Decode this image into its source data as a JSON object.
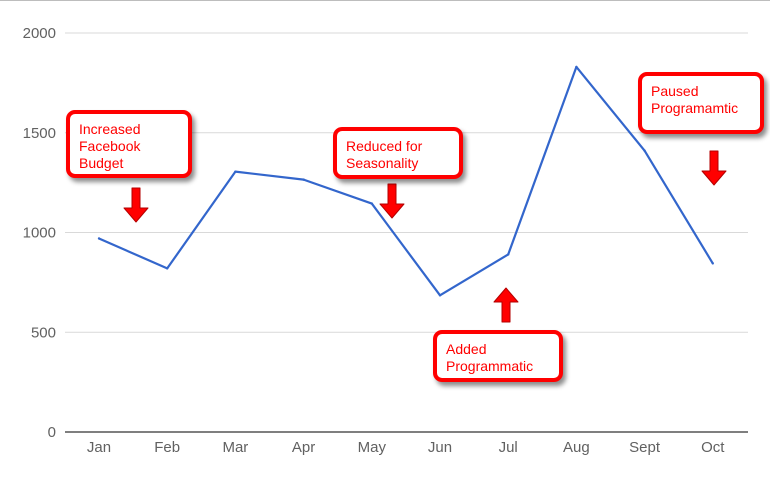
{
  "chart_data": {
    "type": "line",
    "categories": [
      "Jan",
      "Feb",
      "Mar",
      "Apr",
      "May",
      "Jun",
      "Jul",
      "Aug",
      "Sept",
      "Oct"
    ],
    "series": [
      {
        "values": [
          970,
          820,
          1305,
          1265,
          1145,
          685,
          890,
          1830,
          1410,
          845
        ]
      }
    ],
    "ylim": [
      0,
      2000
    ],
    "yticks": [
      0,
      500,
      1000,
      1500,
      2000
    ],
    "grid": true,
    "legend": "none",
    "line_color": "#3366cc",
    "annotation_color": "#ff0000",
    "annotations": [
      {
        "text": "Increased\nFacebook\nBudget",
        "category": "Feb",
        "direction": "down"
      },
      {
        "text": "Reduced for\nSeasonality",
        "category": "May",
        "direction": "down"
      },
      {
        "text": "Added\nProgrammatic",
        "category": "Jul",
        "direction": "up"
      },
      {
        "text": "Paused\nProgramamtic",
        "category": "Oct",
        "direction": "down"
      }
    ]
  }
}
